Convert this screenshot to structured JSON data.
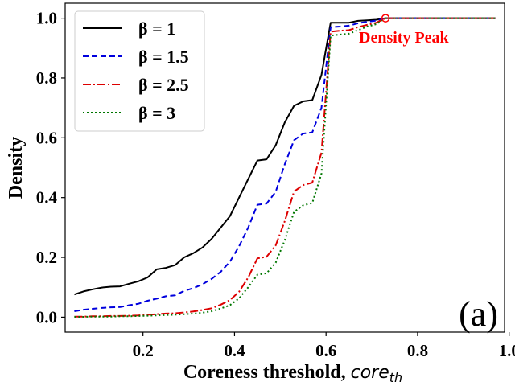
{
  "chart_data": {
    "type": "line",
    "xlabel": "Coreness threshold, ",
    "xlabel_italic": "core",
    "xlabel_sub": "th",
    "ylabel": "Density",
    "xlim": [
      0.03,
      0.99
    ],
    "ylim": [
      -0.05,
      1.05
    ],
    "xticks": [
      0.2,
      0.4,
      0.6,
      0.8,
      1.0
    ],
    "xtick_labels": [
      "0.2",
      "0.4",
      "0.6",
      "0.8",
      "1.0"
    ],
    "yticks": [
      0.0,
      0.2,
      0.4,
      0.6,
      0.8,
      1.0
    ],
    "ytick_labels": [
      "0.0",
      "0.2",
      "0.4",
      "0.6",
      "0.8",
      "1.0"
    ],
    "grid": false,
    "legend_position": "top-left",
    "x": [
      0.05,
      0.07,
      0.09,
      0.11,
      0.13,
      0.15,
      0.17,
      0.19,
      0.21,
      0.23,
      0.25,
      0.27,
      0.29,
      0.31,
      0.33,
      0.35,
      0.37,
      0.39,
      0.41,
      0.43,
      0.45,
      0.47,
      0.49,
      0.51,
      0.53,
      0.55,
      0.57,
      0.59,
      0.61,
      0.63,
      0.65,
      0.67,
      0.69,
      0.71,
      0.73,
      0.75,
      0.77,
      0.79,
      0.81,
      0.83,
      0.85,
      0.87,
      0.89,
      0.91,
      0.93,
      0.95,
      0.97
    ],
    "series": [
      {
        "name": "β = 1",
        "color": "#000000",
        "dash": "",
        "values": [
          0.076,
          0.086,
          0.093,
          0.099,
          0.102,
          0.103,
          0.112,
          0.12,
          0.133,
          0.16,
          0.165,
          0.174,
          0.2,
          0.214,
          0.233,
          0.262,
          0.3,
          0.338,
          0.4,
          0.462,
          0.524,
          0.528,
          0.575,
          0.652,
          0.707,
          0.722,
          0.726,
          0.81,
          0.985,
          0.985,
          0.985,
          0.991,
          0.993,
          0.995,
          1.0,
          1.0,
          1.0,
          1.0,
          1.0,
          1.0,
          1.0,
          1.0,
          1.0,
          1.0,
          1.0,
          1.0,
          1.0
        ]
      },
      {
        "name": "β = 1.5",
        "color": "#0000dd",
        "dash": "7,4",
        "values": [
          0.02,
          0.025,
          0.028,
          0.031,
          0.033,
          0.034,
          0.04,
          0.045,
          0.055,
          0.062,
          0.07,
          0.073,
          0.088,
          0.097,
          0.11,
          0.128,
          0.152,
          0.186,
          0.237,
          0.3,
          0.376,
          0.38,
          0.419,
          0.512,
          0.592,
          0.614,
          0.618,
          0.7,
          0.97,
          0.972,
          0.975,
          0.983,
          0.988,
          0.992,
          1.0,
          1.0,
          1.0,
          1.0,
          1.0,
          1.0,
          1.0,
          1.0,
          1.0,
          1.0,
          1.0,
          1.0,
          1.0
        ]
      },
      {
        "name": "β = 2.5",
        "color": "#dd0000",
        "dash": "10,3,2,3",
        "values": [
          0.002,
          0.002,
          0.003,
          0.003,
          0.004,
          0.004,
          0.005,
          0.006,
          0.008,
          0.01,
          0.012,
          0.013,
          0.016,
          0.019,
          0.024,
          0.03,
          0.042,
          0.057,
          0.085,
          0.133,
          0.197,
          0.202,
          0.24,
          0.322,
          0.42,
          0.442,
          0.45,
          0.55,
          0.955,
          0.958,
          0.96,
          0.97,
          0.978,
          0.985,
          1.0,
          1.0,
          1.0,
          1.0,
          1.0,
          1.0,
          1.0,
          1.0,
          1.0,
          1.0,
          1.0,
          1.0,
          1.0
        ]
      },
      {
        "name": "β = 3",
        "color": "#007700",
        "dash": "2,3",
        "values": [
          0.001,
          0.001,
          0.002,
          0.002,
          0.002,
          0.003,
          0.003,
          0.004,
          0.005,
          0.006,
          0.007,
          0.008,
          0.01,
          0.012,
          0.015,
          0.02,
          0.029,
          0.04,
          0.063,
          0.1,
          0.142,
          0.147,
          0.182,
          0.258,
          0.352,
          0.374,
          0.382,
          0.48,
          0.942,
          0.945,
          0.948,
          0.96,
          0.972,
          0.98,
          1.0,
          1.0,
          1.0,
          1.0,
          1.0,
          1.0,
          1.0,
          1.0,
          1.0,
          1.0,
          1.0,
          1.0,
          1.0
        ]
      }
    ],
    "annotation": {
      "text": "Density Peak",
      "color": "#ff0000",
      "x": 0.73,
      "y": 1.0
    },
    "panel_label": "(a)"
  }
}
